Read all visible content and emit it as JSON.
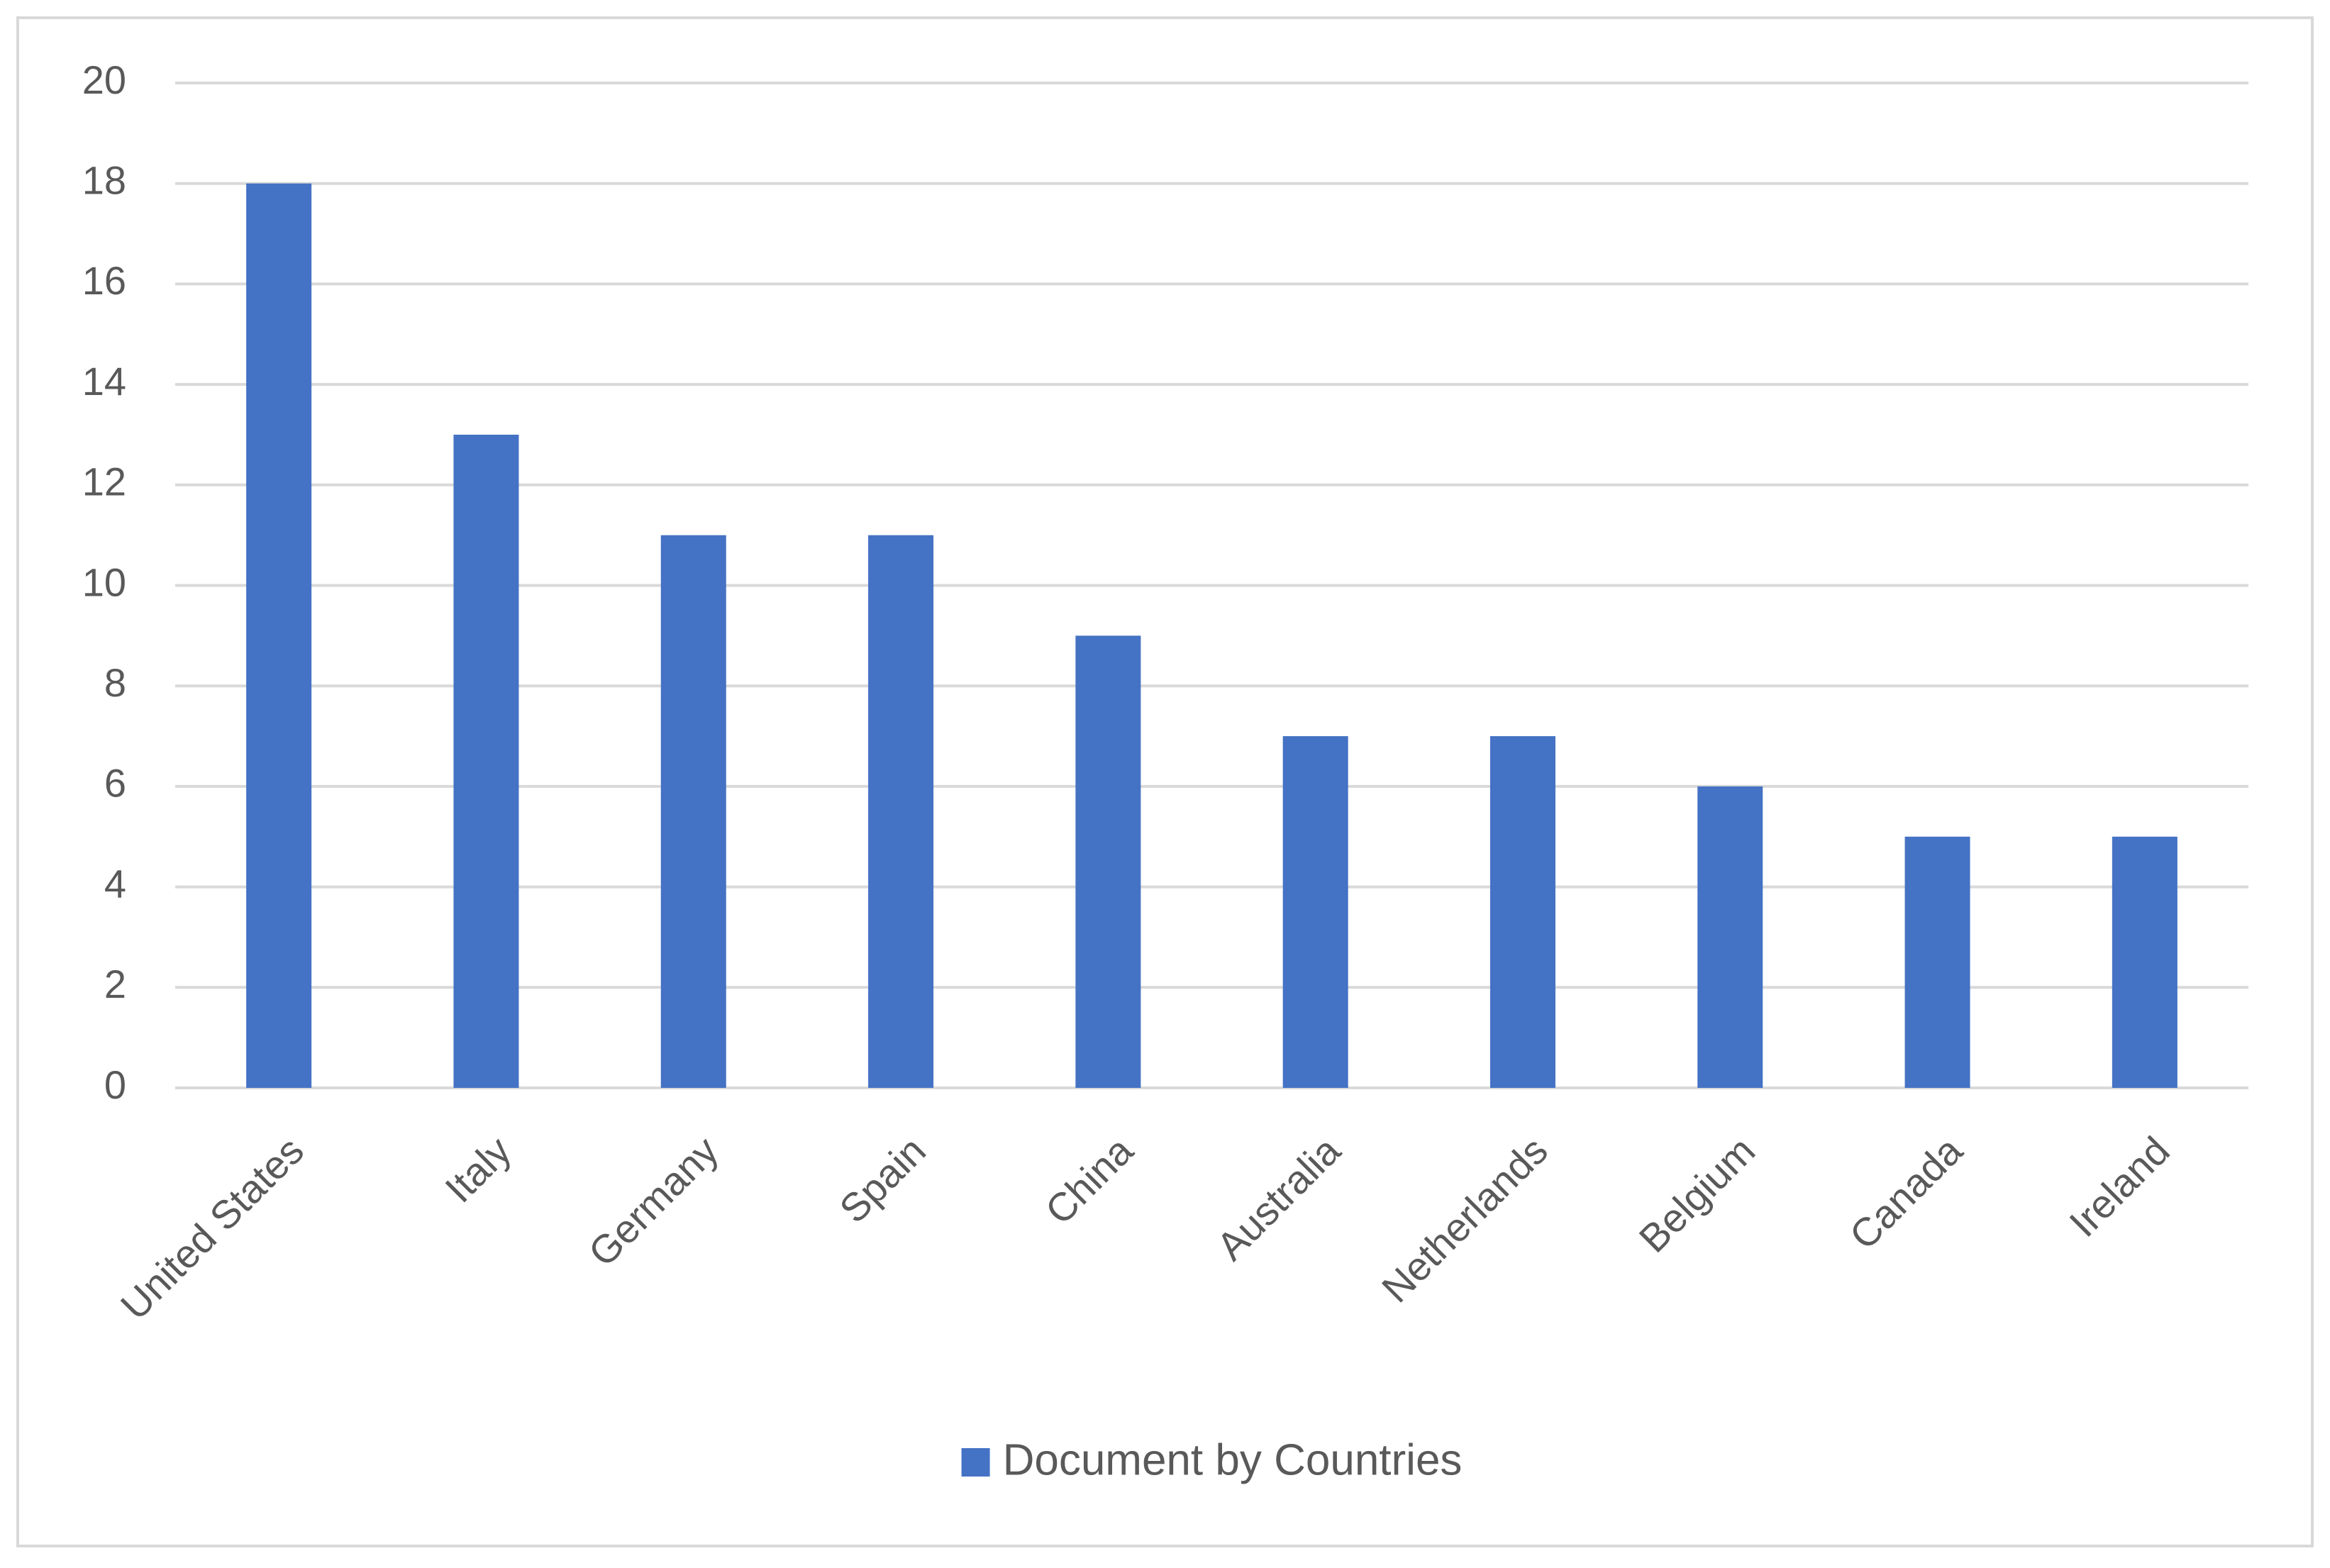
{
  "chart_data": {
    "type": "bar",
    "categories": [
      "United States",
      "Italy",
      "Germany",
      "Spain",
      "China",
      "Australia",
      "Netherlands",
      "Belgium",
      "Canada",
      "Ireland"
    ],
    "series": [
      {
        "name": "Document by Countries",
        "color": "#4472c4",
        "values": [
          18,
          13,
          11,
          11,
          9,
          7,
          7,
          6,
          5,
          5
        ]
      }
    ],
    "ylim": [
      0,
      20
    ],
    "yticks": [
      0,
      2,
      4,
      6,
      8,
      10,
      12,
      14,
      16,
      18,
      20
    ],
    "grid": true,
    "legend": "bottom"
  }
}
